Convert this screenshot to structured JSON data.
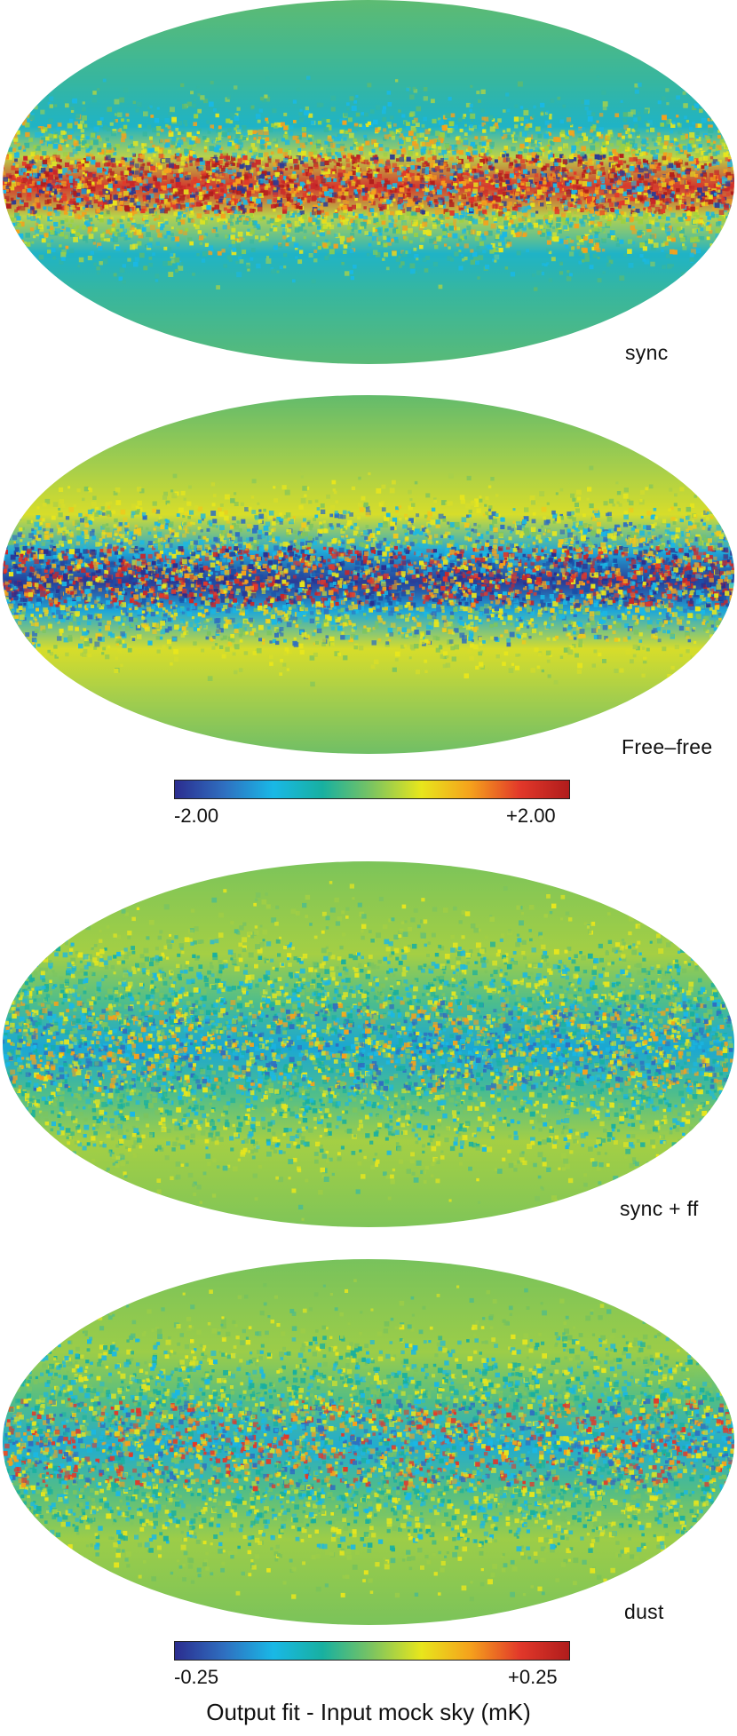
{
  "panels": [
    {
      "label": "sync",
      "style": "sync"
    },
    {
      "label": "Free–free",
      "style": "ff"
    },
    {
      "label": "sync + ff",
      "style": "residual1"
    },
    {
      "label": "dust",
      "style": "residual2"
    }
  ],
  "colorbars": [
    {
      "min_label": "-2.00",
      "max_label": "+2.00"
    },
    {
      "min_label": "-0.25",
      "max_label": "+0.25"
    }
  ],
  "caption": "Output fit - Input mock sky (mK)",
  "colormap": [
    "#2b2d8f",
    "#2f6fc0",
    "#19b8e6",
    "#18b0a0",
    "#7cc460",
    "#e8e61c",
    "#f5a11c",
    "#e2382a",
    "#b01c1c"
  ]
}
